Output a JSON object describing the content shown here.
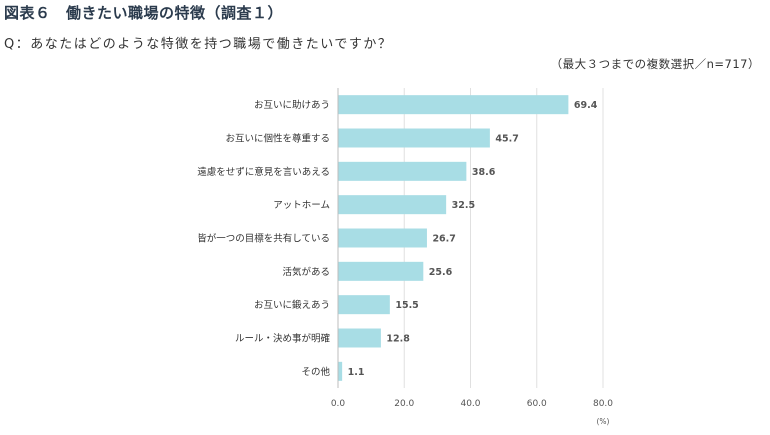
{
  "figure": {
    "title": "図表６　働きたい職場の特徴（調査１）",
    "question": "Q：あなたはどのような特徴を持つ職場で働きたいですか？",
    "note": "（最大３つまでの複数選択／n=717）"
  },
  "chart_data": {
    "type": "bar",
    "orientation": "horizontal",
    "categories": [
      "お互いに助けあう",
      "お互いに個性を尊重する",
      "遠慮をせずに意見を言いあえる",
      "アットホーム",
      "皆が一つの目標を共有している",
      "活気がある",
      "お互いに鍛えあう",
      "ルール・決め事が明確",
      "その他"
    ],
    "values": [
      69.4,
      45.7,
      38.6,
      32.5,
      26.7,
      25.6,
      15.5,
      12.8,
      1.1
    ],
    "value_labels": [
      "69.4",
      "45.7",
      "38.6",
      "32.5",
      "26.7",
      "25.6",
      "15.5",
      "12.8",
      "1.1"
    ],
    "xlim": [
      0,
      80
    ],
    "ticks": [
      0,
      20,
      40,
      60,
      80
    ],
    "tick_labels": [
      "0.0",
      "20.0",
      "40.0",
      "60.0",
      "80.0"
    ],
    "unit": "(%)",
    "bar_color": "#a8dde5",
    "grid": true,
    "grid_color": "#e0e0e0",
    "legend": "none"
  }
}
